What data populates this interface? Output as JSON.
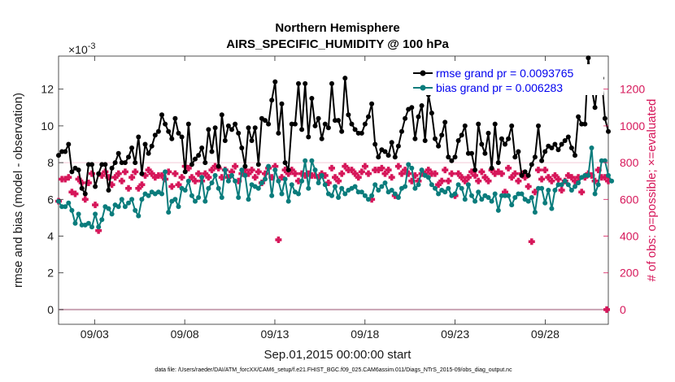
{
  "chart_data": {
    "type": "line",
    "title": "Northern Hemisphere",
    "subtitle": "AIRS_SPECIFIC_HUMIDITY @ 100 hPa",
    "xlabel": "Sep.01,2015 00:00:00 start",
    "ylabel": "rmse and bias (model - observation)",
    "y2label": "# of obs: o=possible; ×=evaluated",
    "y_exponent_label": "×10",
    "y_exponent_power": "-3",
    "footnote": "data file: /Users/raeder/DAI/ATM_forcXX/CAM6_setup/f.e21.FHIST_BGC.f09_025.CAM6assim.011/Diags_NTrS_2015-09/obs_diag_output.nc",
    "xlim": [
      0,
      30.5
    ],
    "ylim": [
      -0.0008,
      0.0138
    ],
    "y2lim": [
      -80,
      1380
    ],
    "y_ticks": [
      0,
      0.002,
      0.004,
      0.006,
      0.008,
      0.01,
      0.012
    ],
    "y_tick_labels": [
      "0",
      "2",
      "4",
      "6",
      "8",
      "10",
      "12"
    ],
    "y2_ticks": [
      0,
      200,
      400,
      600,
      800,
      1000,
      1200
    ],
    "y2_tick_labels": [
      "0",
      "200",
      "400",
      "600",
      "800",
      "1000",
      "1200"
    ],
    "x_ticks": [
      2,
      7,
      12,
      17,
      22,
      27
    ],
    "x_tick_labels": [
      "09/03",
      "09/08",
      "09/13",
      "09/18",
      "09/23",
      "09/28"
    ],
    "grid_y2": [
      800
    ],
    "legend_position": "top-right",
    "series": [
      {
        "name": "rmse grand pr = 0.0093765",
        "color": "#000000",
        "values": [
          8.4,
          8.6,
          8.6,
          9.0,
          7.5,
          7.7,
          7.6,
          6.6,
          6.3,
          7.9,
          7.9,
          6.7,
          7.4,
          7.9,
          7.9,
          6.5,
          7.7,
          8.0,
          8.5,
          8.0,
          8.0,
          8.3,
          8.8,
          8.0,
          9.4,
          7.4,
          9.0,
          8.5,
          8.9,
          9.5,
          9.7,
          10.6,
          10.1,
          9.7,
          9.3,
          10.4,
          9.6,
          9.4,
          7.5,
          10.1,
          7.9,
          8.2,
          8.4,
          8.8,
          8.0,
          9.8,
          8.6,
          9.9,
          7.8,
          10.6,
          9.2,
          10.0,
          9.8,
          10.1,
          9.6,
          8.8,
          7.8,
          9.9,
          9.2,
          9.9,
          7.9,
          10.4,
          10.3,
          10.1,
          11.4,
          12.4,
          9.6,
          11.2,
          8.0,
          7.6,
          10.1,
          10.1,
          12.3,
          9.8,
          12.3,
          9.4,
          11.5,
          10.0,
          10.4,
          9.3,
          10.1,
          9.9,
          12.3,
          10.3,
          10.3,
          9.7,
          12.6,
          10.6,
          10.1,
          9.8,
          9.6,
          9.6,
          10.1,
          10.5,
          11.2,
          9.0,
          8.3,
          8.7,
          8.6,
          8.4,
          9.1,
          8.3,
          8.9,
          9.7,
          10.4,
          10.9,
          11.0,
          9.3,
          10.5,
          11.1,
          9.2,
          11.7,
          10.7,
          9.3,
          8.9,
          9.5,
          10.2,
          8.3,
          8.1,
          8.3,
          9.2,
          9.5,
          10.0,
          8.5,
          8.5,
          7.6,
          10.1,
          9.0,
          8.5,
          9.6,
          7.7,
          10.1,
          8.0,
          9.3,
          9.0,
          9.3,
          10.0,
          8.3,
          8.6,
          7.3,
          7.5,
          7.3,
          7.9,
          8.3,
          10.0,
          8.1,
          8.6,
          8.9,
          8.8,
          9.0,
          8.7,
          9.0,
          9.2,
          9.4,
          8.8,
          8.4,
          10.5,
          10.1,
          10.1,
          13.7,
          12.1,
          11.0,
          12.7,
          12.6,
          10.4,
          9.7
        ]
      },
      {
        "name": "bias grand pr = 0.006283",
        "color": "#0a7c7c",
        "values": [
          5.9,
          5.6,
          5.6,
          5.8,
          5.4,
          4.7,
          5.2,
          4.6,
          4.6,
          4.7,
          4.5,
          5.2,
          4.5,
          4.9,
          5.6,
          5.5,
          5.2,
          5.7,
          5.6,
          6.0,
          5.6,
          5.8,
          6.0,
          5.4,
          5.1,
          6.0,
          6.3,
          6.2,
          6.4,
          6.3,
          6.4,
          6.3,
          7.5,
          5.3,
          5.9,
          6.0,
          5.6,
          6.6,
          6.5,
          7.0,
          6.2,
          5.9,
          6.1,
          7.2,
          5.9,
          6.6,
          6.9,
          7.3,
          6.6,
          6.1,
          7.6,
          7.0,
          7.3,
          7.0,
          6.1,
          7.6,
          7.3,
          6.0,
          6.8,
          6.7,
          6.6,
          6.9,
          7.1,
          7.8,
          6.2,
          7.6,
          7.0,
          6.3,
          7.1,
          5.9,
          6.8,
          6.4,
          6.3,
          7.0,
          8.1,
          6.6,
          8.1,
          7.6,
          6.9,
          7.3,
          6.8,
          6.3,
          6.2,
          6.7,
          6.1,
          6.6,
          6.3,
          6.5,
          6.6,
          6.7,
          6.4,
          6.4,
          6.2,
          6.0,
          6.2,
          6.8,
          6.5,
          6.7,
          6.9,
          6.4,
          6.5,
          6.3,
          6.1,
          6.6,
          6.7,
          7.9,
          7.7,
          6.6,
          6.8,
          7.6,
          7.3,
          7.2,
          6.8,
          6.6,
          6.3,
          6.5,
          6.4,
          6.6,
          6.2,
          6.3,
          6.8,
          6.6,
          6.0,
          6.8,
          6.2,
          5.9,
          6.4,
          6.0,
          6.2,
          6.1,
          5.9,
          6.3,
          5.4,
          6.2,
          6.2,
          6.2,
          5.7,
          6.1,
          6.3,
          6.3,
          6.0,
          5.9,
          6.1,
          5.3,
          6.6,
          6.6,
          5.8,
          6.5,
          5.5,
          6.5,
          6.8,
          6.8,
          7.0,
          6.8,
          6.5,
          6.7,
          6.9,
          7.2,
          7.3,
          7.3,
          8.8,
          6.3,
          6.8,
          8.1,
          8.1,
          7.3,
          7.0
        ]
      },
      {
        "name": "# of obs evaluated",
        "color": "#d6175a",
        "axis": "right",
        "values": [
          590,
          710,
          710,
          720,
          640,
          630,
          710,
          690,
          600,
          690,
          740,
          570,
          430,
          730,
          750,
          720,
          680,
          720,
          740,
          700,
          750,
          660,
          720,
          750,
          660,
          680,
          730,
          760,
          740,
          720,
          730,
          730,
          710,
          750,
          670,
          740,
          680,
          720,
          780,
          770,
          720,
          700,
          740,
          700,
          740,
          720,
          760,
          780,
          770,
          720,
          760,
          720,
          750,
          780,
          700,
          740,
          760,
          740,
          760,
          720,
          750,
          690,
          740,
          770,
          720,
          780,
          380,
          720,
          760,
          740,
          760,
          740,
          700,
          740,
          730,
          740,
          730,
          730,
          720,
          740,
          730,
          690,
          770,
          720,
          700,
          740,
          780,
          760,
          760,
          740,
          720,
          750,
          780,
          740,
          600,
          760,
          760,
          770,
          740,
          760,
          720,
          620,
          780,
          740,
          760,
          740,
          700,
          730,
          700,
          740,
          740,
          760,
          740,
          740,
          680,
          700,
          760,
          700,
          740,
          620,
          740,
          720,
          700,
          720,
          750,
          730,
          700,
          750,
          720,
          700,
          760,
          740,
          750,
          740,
          640,
          770,
          720,
          740,
          700,
          740,
          720,
          670,
          370,
          640,
          760,
          710,
          760,
          720,
          700,
          730,
          710,
          650,
          700,
          730,
          720,
          700,
          720,
          640,
          720,
          740,
          730,
          700,
          760,
          720,
          720,
          700
        ]
      }
    ]
  }
}
